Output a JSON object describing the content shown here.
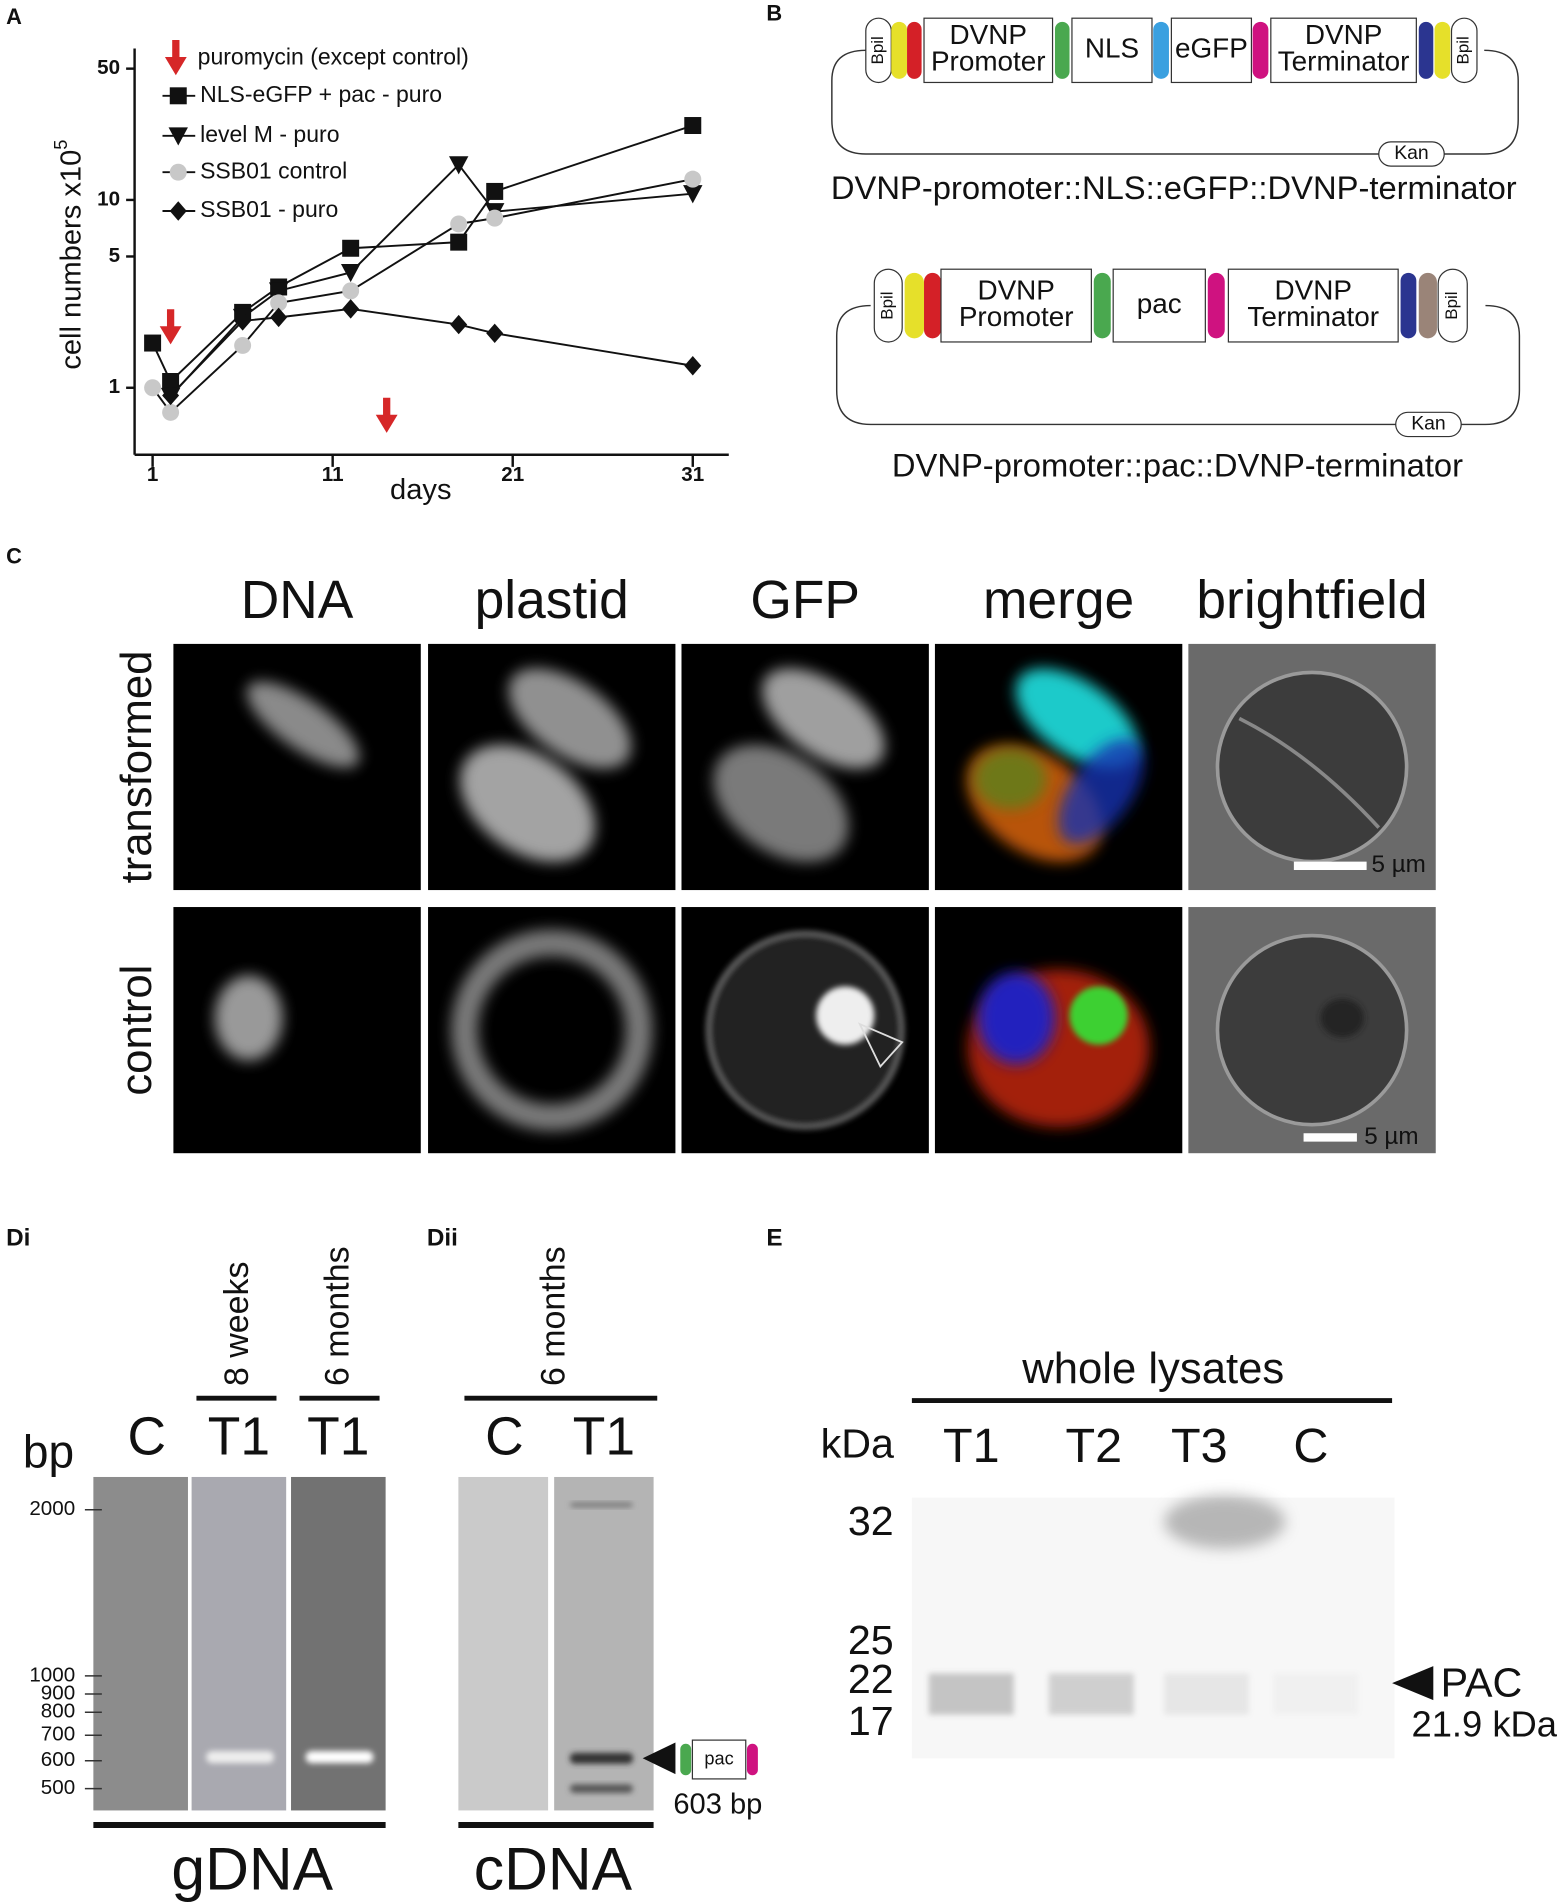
{
  "chart_data": {
    "type": "line",
    "panel_label": "A",
    "x": [
      1,
      2,
      6,
      8,
      12,
      18,
      20,
      31
    ],
    "xlim": [
      0,
      33
    ],
    "xticks": [
      1,
      11,
      21,
      31
    ],
    "xlabel": "days",
    "ylabel": "cell numbers x10",
    "ylabel_exponent": "5",
    "log_y": true,
    "ylim": [
      0.44,
      64
    ],
    "yticks": [
      1,
      5,
      10,
      50
    ],
    "annotation": "puromycin (except control)",
    "annotation_color": "#d62728",
    "arrow_x": [
      2,
      14
    ],
    "series": [
      {
        "name": "NLS-eGFP + pac - puro",
        "color": "#111111",
        "marker": "square",
        "values": [
          1.73,
          1.08,
          2.52,
          3.44,
          5.53,
          5.96,
          11.1,
          24.9
        ]
      },
      {
        "name": "level M - puro",
        "color": "#111111",
        "marker": "triangle",
        "values": [
          null,
          0.9,
          2.37,
          3.28,
          4.11,
          15.4,
          8.66,
          10.8
        ]
      },
      {
        "name": "SSB01 control",
        "color": "#c8c8c8",
        "marker": "circle",
        "values": [
          1.0,
          0.74,
          1.68,
          2.83,
          3.28,
          7.45,
          8.0,
          12.9
        ]
      },
      {
        "name": "SSB01 - puro",
        "color": "#111111",
        "marker": "diamond",
        "values": [
          null,
          0.91,
          2.27,
          2.37,
          2.63,
          2.17,
          1.95,
          1.31
        ]
      }
    ]
  },
  "panel_b": {
    "label": "B",
    "constructs": [
      {
        "parts": [
          "Bpil",
          "DVNP Promoter",
          "NLS",
          "eGFP",
          "DVNP Terminator",
          "Bpil"
        ],
        "backbone": "Kan",
        "caption": "DVNP-promoter::NLS::eGFP::DVNP-terminator"
      },
      {
        "parts": [
          "Bpil",
          "DVNP Promoter",
          "pac",
          "DVNP Terminator",
          "Bpil"
        ],
        "backbone": "Kan",
        "caption": "DVNP-promoter::pac::DVNP-terminator"
      }
    ]
  },
  "panel_c": {
    "label": "C",
    "columns": [
      "DNA",
      "plastid",
      "GFP",
      "merge",
      "brightfield"
    ],
    "rows": [
      "transformed",
      "control"
    ],
    "scale_bar": "5 µm"
  },
  "panel_di": {
    "label": "Di",
    "lane_groups": [
      "8 weeks",
      "6 months"
    ],
    "unit": "bp",
    "lanes": [
      "C",
      "T1",
      "T1"
    ],
    "ladder": [
      "2000",
      "1000",
      "900",
      "800",
      "700",
      "600",
      "500"
    ],
    "sample": "gDNA"
  },
  "panel_dii": {
    "label": "Dii",
    "lane_group": "6 months",
    "lanes": [
      "C",
      "T1"
    ],
    "insert": "pac",
    "size": "603 bp",
    "sample": "cDNA"
  },
  "panel_e": {
    "label": "E",
    "title": "whole lysates",
    "unit": "kDa",
    "lanes": [
      "T1",
      "T2",
      "T3",
      "C"
    ],
    "markers": [
      "32",
      "25",
      "22",
      "17"
    ],
    "band": "PAC",
    "band_size": "21.9 kDa"
  }
}
